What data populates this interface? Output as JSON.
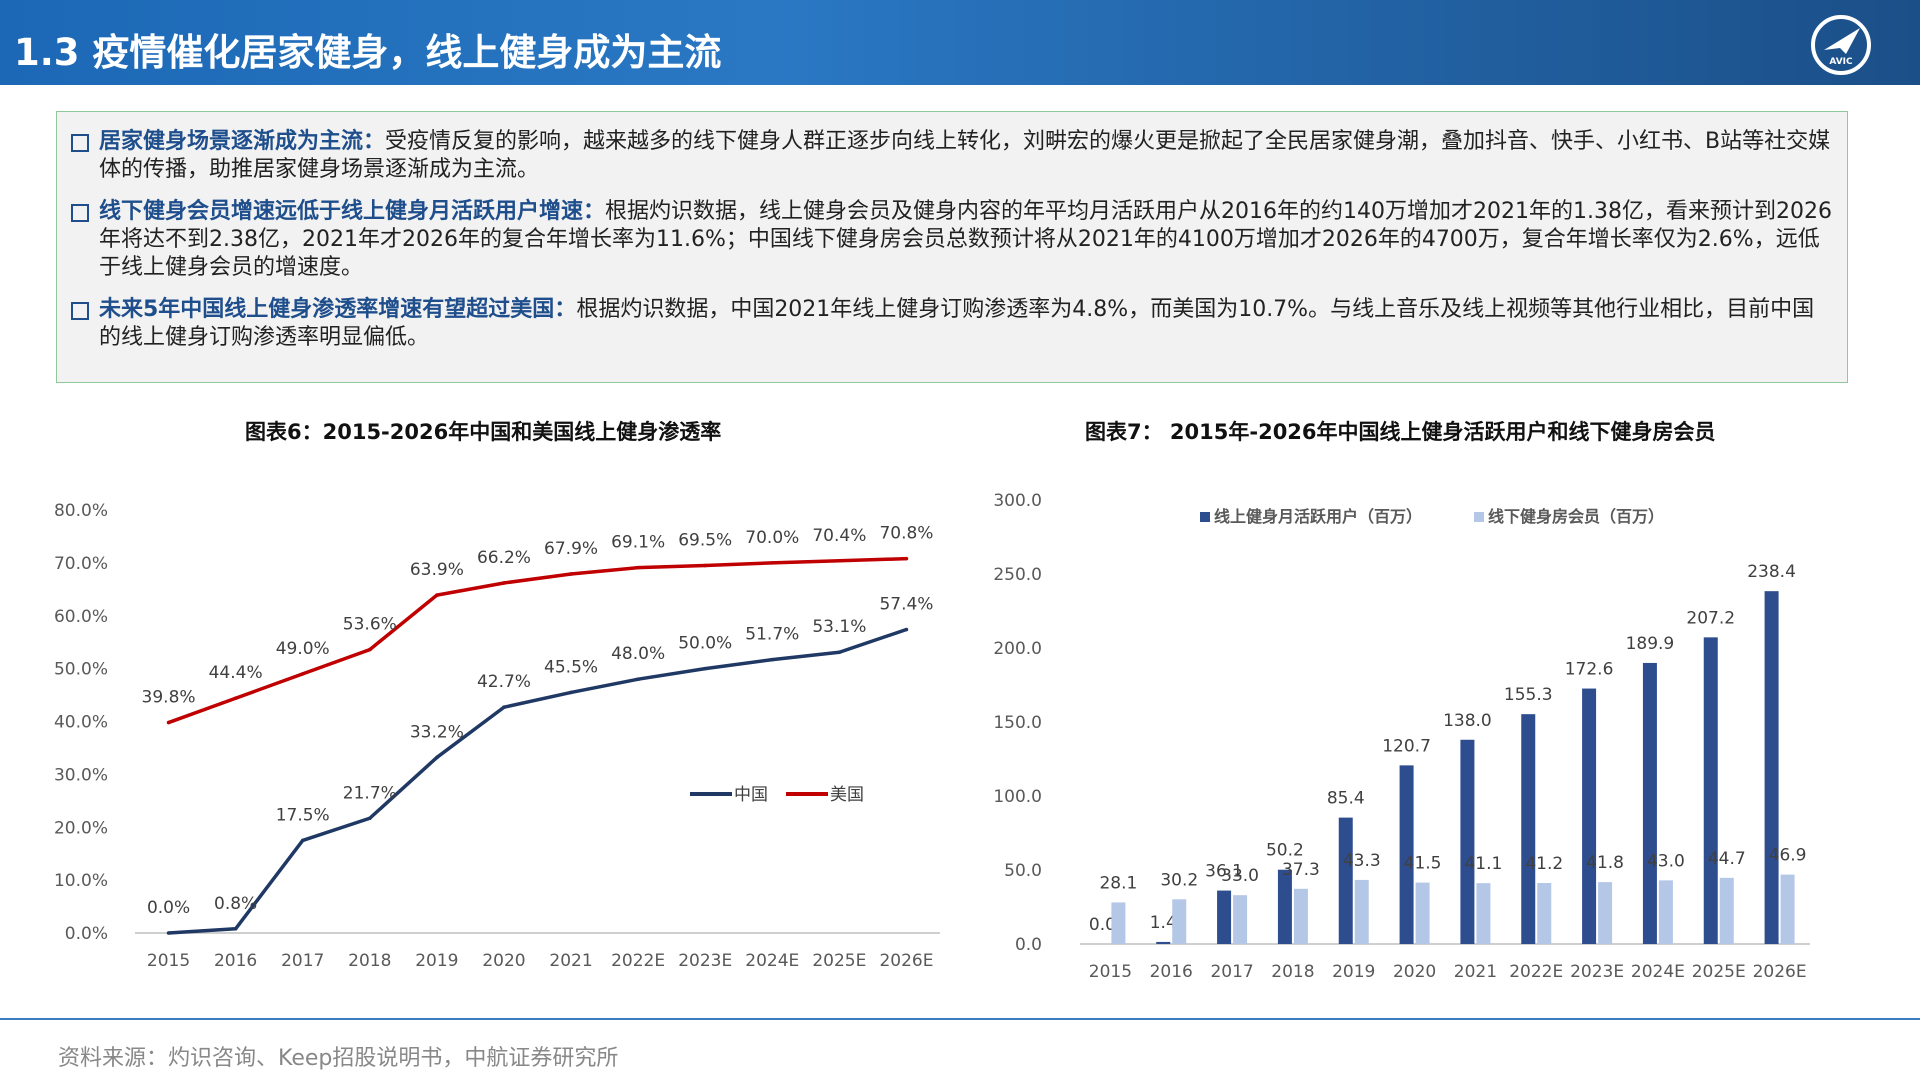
{
  "header": {
    "title": "1.3 疫情催化居家健身，线上健身成为主流",
    "logo_text": "AVIC"
  },
  "summary": [
    {
      "highlight": "居家健身场景逐渐成为主流：",
      "text": "受疫情反复的影响，越来越多的线下健身人群正逐步向线上转化，刘畊宏的爆火更是掀起了全民居家健身潮，叠加抖音、快手、小红书、B站等社交媒体的传播，助推居家健身场景逐渐成为主流。"
    },
    {
      "highlight": "线下健身会员增速远低于线上健身月活跃用户增速：",
      "text": "根据灼识数据，线上健身会员及健身内容的年平均月活跃用户从2016年的约140万增加才2021年的1.38亿，看来预计到2026年将达不到2.38亿，2021年才2026年的复合年增长率为11.6%；中国线下健身房会员总数预计将从2021年的4100万增加才2026年的4700万，复合年增长率仅为2.6%，远低于线上健身会员的增速度。"
    },
    {
      "highlight": "未来5年中国线上健身渗透率增速有望超过美国：",
      "text": "根据灼识数据，中国2021年线上健身订购渗透率为4.8%，而美国为10.7%。与线上音乐及线上视频等其他行业相比，目前中国的线上健身订购渗透率明显偏低。"
    }
  ],
  "chart_data": [
    {
      "type": "line",
      "title": "图表6：2015-2026年中国和美国线上健身渗透率",
      "categories": [
        "2015",
        "2016",
        "2017",
        "2018",
        "2019",
        "2020",
        "2021",
        "2022E",
        "2023E",
        "2024E",
        "2025E",
        "2026E"
      ],
      "y_ticks": [
        "0.0%",
        "10.0%",
        "20.0%",
        "30.0%",
        "40.0%",
        "50.0%",
        "60.0%",
        "70.0%",
        "80.0%"
      ],
      "ylim": [
        0,
        80
      ],
      "legend_position": "center-right",
      "series": [
        {
          "name": "中国",
          "color": "#1f3864",
          "values": [
            0.0,
            0.8,
            17.5,
            21.7,
            33.2,
            42.7,
            45.5,
            48.0,
            50.0,
            51.7,
            53.1,
            57.4
          ],
          "labels": [
            "0.0%",
            "0.8%",
            "17.5%",
            "21.7%",
            "33.2%",
            "42.7%",
            "45.5%",
            "48.0%",
            "50.0%",
            "51.7%",
            "53.1%",
            "57.4%"
          ]
        },
        {
          "name": "美国",
          "color": "#c00000",
          "values": [
            39.8,
            44.4,
            49.0,
            53.6,
            63.9,
            66.2,
            67.9,
            69.1,
            69.5,
            70.0,
            70.4,
            70.8
          ],
          "labels": [
            "39.8%",
            "44.4%",
            "49.0%",
            "53.6%",
            "63.9%",
            "66.2%",
            "67.9%",
            "69.1%",
            "69.5%",
            "70.0%",
            "70.4%",
            "70.8%"
          ]
        }
      ]
    },
    {
      "type": "bar",
      "title": "图表7： 2015年-2026年中国线上健身活跃用户和线下健身房会员",
      "categories": [
        "2015",
        "2016",
        "2017",
        "2018",
        "2019",
        "2020",
        "2021",
        "2022E",
        "2023E",
        "2024E",
        "2025E",
        "2026E"
      ],
      "y_ticks": [
        "0.0",
        "50.0",
        "100.0",
        "150.0",
        "200.0",
        "250.0",
        "300.0"
      ],
      "ylim": [
        0,
        300
      ],
      "legend_position": "top",
      "series": [
        {
          "name": "线上健身月活跃用户（百万）",
          "color": "#2e4d8f",
          "values": [
            0.0,
            1.4,
            36.1,
            50.2,
            85.4,
            120.7,
            138.0,
            155.3,
            172.6,
            189.9,
            207.2,
            238.4
          ],
          "labels": [
            "0.0",
            "1.4",
            "36.1",
            "50.2",
            "85.4",
            "120.7",
            "138.0",
            "155.3",
            "172.6",
            "189.9",
            "207.2",
            "238.4"
          ]
        },
        {
          "name": "线下健身房会员（百万）",
          "color": "#b4c7e7",
          "values": [
            28.1,
            30.2,
            33.0,
            37.3,
            43.3,
            41.5,
            41.1,
            41.2,
            41.8,
            43.0,
            44.7,
            46.9
          ],
          "labels": [
            "28.1",
            "30.2",
            "33.0",
            "37.3",
            "43.3",
            "41.5",
            "41.1",
            "41.2",
            "41.8",
            "43.0",
            "44.7",
            "46.9"
          ]
        }
      ]
    }
  ],
  "footer": {
    "source": "资料来源：灼识咨询、Keep招股说明书，中航证券研究所"
  }
}
